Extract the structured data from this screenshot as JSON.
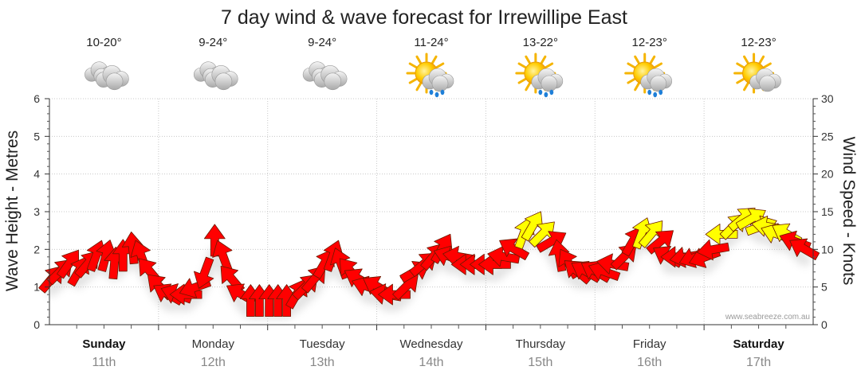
{
  "chart_data": {
    "type": "line",
    "title": "7 day wind & wave forecast for Irrewillipe East",
    "ylabel_left": "Wave Height - Metres",
    "ylabel_right": "Wind Speed - Knots",
    "ylim_left": [
      0,
      6
    ],
    "ylim_right": [
      0,
      30
    ],
    "yticks_left": [
      "0",
      "1",
      "2",
      "3",
      "4",
      "5",
      "6"
    ],
    "yticks_right": [
      "0",
      "5",
      "10",
      "15",
      "20",
      "25",
      "30"
    ],
    "grid": true,
    "days": [
      {
        "name": "Sunday",
        "date": "11th",
        "temp": "10-20°",
        "weather": "cloudy",
        "bold": true
      },
      {
        "name": "Monday",
        "date": "12th",
        "temp": "9-24°",
        "weather": "cloudy",
        "bold": false
      },
      {
        "name": "Tuesday",
        "date": "13th",
        "temp": "9-24°",
        "weather": "cloudy",
        "bold": false
      },
      {
        "name": "Wednesday",
        "date": "14th",
        "temp": "11-24°",
        "weather": "sun-cloud-rain",
        "bold": false
      },
      {
        "name": "Thursday",
        "date": "15th",
        "temp": "13-22°",
        "weather": "sun-cloud-rain",
        "bold": false
      },
      {
        "name": "Friday",
        "date": "16th",
        "temp": "12-23°",
        "weather": "sun-cloud-rain",
        "bold": false
      },
      {
        "name": "Saturday",
        "date": "17th",
        "temp": "12-23°",
        "weather": "sun-cloud",
        "bold": true
      }
    ],
    "series": [
      {
        "name": "Wind Speed (Knots)",
        "unit": "knots",
        "axis": "right",
        "threshold_yellow": 12,
        "color_low": "#ff0000",
        "color_high": "#ffff00",
        "x_day": [
          0.0,
          0.08,
          0.16,
          0.25,
          0.33,
          0.41,
          0.5,
          0.58,
          0.66,
          0.75,
          0.83,
          0.91,
          1.0,
          1.08,
          1.16,
          1.25,
          1.33,
          1.41,
          1.5,
          1.58,
          1.66,
          1.75,
          1.83,
          1.91,
          2.0,
          2.08,
          2.16,
          2.25,
          2.33,
          2.41,
          2.5,
          2.58,
          2.66,
          2.75,
          2.83,
          2.91,
          3.0,
          3.08,
          3.16,
          3.25,
          3.33,
          3.41,
          3.5,
          3.58,
          3.66,
          3.75,
          3.83,
          3.91,
          4.0,
          4.08,
          4.16,
          4.25,
          4.33,
          4.41,
          4.5,
          4.58,
          4.66,
          4.75,
          4.83,
          4.91,
          5.0,
          5.08,
          5.16,
          5.25,
          5.33,
          5.41,
          5.5,
          5.58,
          5.66,
          5.75,
          5.83,
          5.91,
          6.0,
          6.08,
          6.16,
          6.25,
          6.33,
          6.41,
          6.5,
          6.58,
          6.66,
          6.75,
          6.83,
          6.91
        ],
        "values": [
          6,
          7,
          8,
          7,
          8,
          9,
          9,
          8,
          9,
          10,
          9,
          7,
          5,
          4,
          4,
          4,
          5,
          7,
          11,
          9,
          6,
          4,
          3,
          3,
          3,
          3,
          3,
          4,
          5,
          6,
          8,
          9,
          8,
          7,
          6,
          5,
          5,
          4,
          4,
          5,
          7,
          8,
          9,
          10,
          9,
          9,
          8,
          8,
          8,
          8,
          9,
          10,
          12,
          13,
          12,
          11,
          9,
          8,
          7,
          7,
          7,
          7,
          8,
          9,
          11,
          12,
          12,
          11,
          9,
          9,
          9,
          9,
          9,
          10,
          12,
          13,
          14,
          14,
          13,
          13,
          12,
          12,
          11,
          10
        ],
        "direction_deg": [
          40,
          45,
          35,
          30,
          40,
          20,
          15,
          5,
          0,
          355,
          340,
          320,
          315,
          300,
          290,
          270,
          250,
          200,
          0,
          340,
          320,
          300,
          0,
          0,
          0,
          0,
          0,
          30,
          45,
          40,
          30,
          20,
          340,
          320,
          300,
          290,
          300,
          280,
          270,
          45,
          60,
          50,
          40,
          30,
          290,
          280,
          270,
          270,
          270,
          270,
          280,
          300,
          20,
          30,
          45,
          60,
          350,
          330,
          310,
          300,
          300,
          290,
          280,
          45,
          30,
          20,
          40,
          50,
          300,
          270,
          260,
          250,
          250,
          260,
          270,
          45,
          50,
          60,
          70,
          280,
          290,
          300,
          290,
          300
        ]
      }
    ]
  },
  "credit": "www.seabreeze.com.au"
}
